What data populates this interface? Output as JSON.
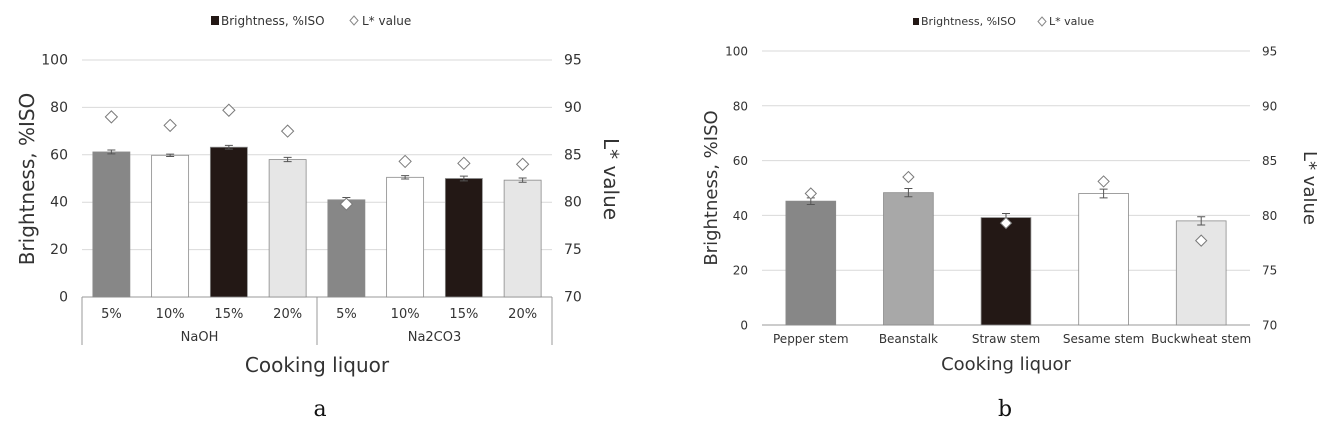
{
  "chart_data": [
    {
      "type": "bar",
      "panel_label": "a",
      "legend": [
        "Brightness, %ISO",
        "L* value"
      ],
      "legend_placement": "top",
      "ylabel": "Brightness, %ISO",
      "y2label": "L* value",
      "xlabel": "Cooking liquor",
      "ylim": [
        0,
        100
      ],
      "y2lim": [
        70,
        95
      ],
      "yticks": [
        "0",
        "20",
        "40",
        "60",
        "80",
        "100"
      ],
      "y2ticks": [
        "70",
        "75",
        "80",
        "85",
        "90",
        "95"
      ],
      "grid": true,
      "groups": [
        {
          "label": "NaOH",
          "count": 4
        },
        {
          "label": "Na2CO3",
          "count": 4
        }
      ],
      "categories": [
        "5%",
        "10%",
        "15%",
        "20%",
        "5%",
        "10%",
        "15%",
        "20%"
      ],
      "brightness": [
        61.2,
        59.8,
        63.2,
        58.0,
        41.0,
        50.5,
        50.0,
        49.3
      ],
      "brightness_err": [
        0.8,
        0.5,
        0.8,
        0.9,
        1.0,
        0.7,
        1.0,
        0.9
      ],
      "lstar": [
        89.0,
        88.1,
        89.7,
        87.5,
        79.8,
        84.3,
        84.1,
        84.0
      ],
      "bar_colors": [
        "#878787",
        "#ffffff",
        "#231815",
        "#e6e6e6",
        "#878787",
        "#ffffff",
        "#231815",
        "#e6e6e6"
      ]
    },
    {
      "type": "bar",
      "panel_label": "b",
      "legend": [
        "Brightness, %ISO",
        "L* value"
      ],
      "legend_placement": "top",
      "ylabel": "Brightness, %ISO",
      "y2label": "L* value",
      "xlabel": "Cooking liquor",
      "ylim": [
        0,
        100
      ],
      "y2lim": [
        70,
        95
      ],
      "yticks": [
        "0",
        "20",
        "40",
        "60",
        "80",
        "100"
      ],
      "y2ticks": [
        "70",
        "75",
        "80",
        "85",
        "90",
        "95"
      ],
      "grid": true,
      "categories": [
        "Pepper stem",
        "Beanstalk",
        "Straw stem",
        "Sesame stem",
        "Buckwheat stem"
      ],
      "brightness": [
        45.2,
        48.3,
        39.2,
        48.0,
        38.0
      ],
      "brightness_err": [
        1.2,
        1.5,
        1.5,
        1.6,
        1.5
      ],
      "lstar": [
        82.0,
        83.5,
        79.3,
        83.1,
        77.7
      ],
      "bar_colors": [
        "#878787",
        "#a8a8a8",
        "#231815",
        "#ffffff",
        "#e6e6e6"
      ]
    }
  ]
}
